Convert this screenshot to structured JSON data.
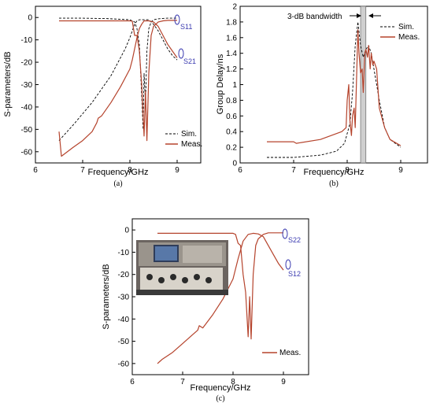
{
  "colors": {
    "meas": "#b5432c",
    "sim": "#000000",
    "marker": "#3b3bb0",
    "band": "#cfcfcf"
  },
  "chart_data": [
    {
      "id": "a",
      "type": "line",
      "caption": "(a)",
      "xlabel": "Frequency/GHz",
      "ylabel": "S-parameters/dB",
      "xlim": [
        6,
        9.5
      ],
      "ylim": [
        -65,
        5
      ],
      "xticks": [
        "6",
        "7",
        "8",
        "9"
      ],
      "yticks": [
        "0",
        "-10",
        "-20",
        "-30",
        "-40",
        "-50",
        "-60"
      ],
      "legend": [
        "Sim.",
        "Meas."
      ],
      "annotations": [
        "S11",
        "S21"
      ],
      "series": [
        {
          "name": "Sim.",
          "dash": true,
          "x": [
            6.5,
            6.8,
            7.0,
            7.2,
            7.4,
            7.6,
            7.8,
            7.9,
            8.0,
            8.05,
            8.1,
            8.15,
            8.2,
            8.25,
            8.3,
            8.35,
            8.4,
            8.5,
            8.6,
            8.7,
            8.8,
            8.9,
            9.0
          ],
          "y": [
            -55,
            -48,
            -43,
            -38,
            -32,
            -26,
            -18,
            -14,
            -9,
            -6,
            -3,
            -1.5,
            -1,
            -1,
            -1,
            -1,
            -1,
            -3,
            -6,
            -10,
            -14,
            -17,
            -19
          ]
        },
        {
          "name": "Sim.",
          "dash": true,
          "x": [
            6.5,
            7.0,
            7.5,
            8.0,
            8.1,
            8.15,
            8.2,
            8.25,
            8.28,
            8.3,
            8.33,
            8.36,
            8.4,
            8.45,
            8.5,
            8.6,
            8.7,
            8.8,
            9.0
          ],
          "y": [
            -0.3,
            -0.3,
            -0.5,
            -1,
            -2,
            -5,
            -12,
            -35,
            -50,
            -25,
            -38,
            -15,
            -5,
            -2,
            -1,
            -0.6,
            -0.4,
            -0.3,
            -0.3
          ]
        },
        {
          "name": "Meas.",
          "x": [
            6.5,
            6.55,
            6.8,
            7.0,
            7.2,
            7.3,
            7.33,
            7.4,
            7.6,
            7.8,
            8.0,
            8.05,
            8.1,
            8.15,
            8.2,
            8.25,
            8.3,
            8.35,
            8.4,
            8.5,
            8.6,
            8.7,
            8.8,
            8.9,
            9.0
          ],
          "y": [
            -51,
            -62,
            -58,
            -55,
            -51,
            -47,
            -45,
            -44,
            -38,
            -31,
            -23,
            -19,
            -14,
            -9,
            -5,
            -3,
            -1.5,
            -1.5,
            -1.5,
            -2,
            -4,
            -8,
            -12,
            -15,
            -18
          ]
        },
        {
          "name": "Meas.",
          "x": [
            6.5,
            7.0,
            7.5,
            8.0,
            8.05,
            8.1,
            8.15,
            8.2,
            8.25,
            8.3,
            8.33,
            8.36,
            8.4,
            8.45,
            8.5,
            8.6,
            8.7,
            8.8,
            9.0
          ],
          "y": [
            -1.5,
            -1.5,
            -1.5,
            -1.5,
            -1.6,
            -8,
            -8,
            -15,
            -30,
            -53,
            -33,
            -55,
            -25,
            -8,
            -4,
            -2,
            -1.5,
            -1.3,
            -1.3
          ]
        }
      ]
    },
    {
      "id": "b",
      "type": "line",
      "caption": "(b)",
      "xlabel": "Frequency/GHz",
      "ylabel": "Group Delay/ns",
      "xlim": [
        6,
        9.5
      ],
      "ylim": [
        0,
        2.0
      ],
      "xticks": [
        "6",
        "7",
        "8",
        "9"
      ],
      "yticks": [
        "0",
        "0.2",
        "0.4",
        "0.6",
        "0.8",
        "1",
        "1.2",
        "1.4",
        "1.6",
        "1.8",
        "2"
      ],
      "band": [
        8.25,
        8.35
      ],
      "band_label": "3-dB bandwidth",
      "legend": [
        "Sim.",
        "Meas."
      ],
      "series": [
        {
          "name": "Sim.",
          "dash": true,
          "x": [
            6.5,
            7.0,
            7.5,
            7.8,
            7.95,
            8.05,
            8.1,
            8.15,
            8.2,
            8.25,
            8.3,
            8.35,
            8.4,
            8.45,
            8.5,
            8.6,
            8.7,
            8.8,
            9.0
          ],
          "y": [
            0.07,
            0.07,
            0.1,
            0.15,
            0.25,
            0.5,
            0.9,
            1.5,
            1.8,
            1.5,
            1.35,
            1.45,
            1.5,
            1.4,
            1.2,
            0.8,
            0.45,
            0.3,
            0.2
          ]
        },
        {
          "name": "Meas.",
          "x": [
            6.5,
            7.0,
            7.05,
            7.5,
            7.9,
            7.98,
            8.0,
            8.03,
            8.05,
            8.08,
            8.1,
            8.13,
            8.15,
            8.2,
            8.22,
            8.25,
            8.28,
            8.3,
            8.33,
            8.35,
            8.38,
            8.4,
            8.43,
            8.45,
            8.48,
            8.5,
            8.55,
            8.6,
            8.7,
            8.8,
            9.0
          ],
          "y": [
            0.27,
            0.27,
            0.25,
            0.3,
            0.4,
            0.45,
            0.8,
            1.0,
            0.55,
            0.35,
            0.6,
            0.7,
            0.45,
            1.7,
            1.4,
            1.15,
            1.2,
            0.9,
            1.4,
            1.45,
            1.35,
            1.5,
            1.2,
            1.4,
            1.25,
            1.3,
            1.2,
            0.7,
            0.45,
            0.3,
            0.22
          ]
        }
      ]
    },
    {
      "id": "c",
      "type": "line",
      "caption": "(c)",
      "xlabel": "Frequency/GHz",
      "ylabel": "S-parameters/dB",
      "xlim": [
        6,
        9.5
      ],
      "ylim": [
        -65,
        5
      ],
      "xticks": [
        "6",
        "7",
        "8",
        "9"
      ],
      "yticks": [
        "0",
        "-10",
        "-20",
        "-30",
        "-40",
        "-50",
        "-60"
      ],
      "legend": [
        "Meas."
      ],
      "annotations": [
        "S22",
        "S12"
      ],
      "series": [
        {
          "name": "Meas.",
          "x": [
            6.5,
            6.55,
            6.6,
            6.8,
            7.0,
            7.2,
            7.3,
            7.33,
            7.4,
            7.6,
            7.8,
            8.0,
            8.1,
            8.2,
            8.3,
            8.4,
            8.5,
            8.6,
            8.7,
            8.8,
            8.9,
            9.0
          ],
          "y": [
            -60,
            -59,
            -58,
            -55,
            -51,
            -47,
            -45,
            -43,
            -44,
            -38,
            -31,
            -22,
            -13,
            -5,
            -2,
            -1.5,
            -1.8,
            -3,
            -7,
            -11,
            -15,
            -18
          ]
        },
        {
          "name": "Meas.",
          "x": [
            6.5,
            7.0,
            7.5,
            8.0,
            8.05,
            8.1,
            8.15,
            8.2,
            8.25,
            8.3,
            8.33,
            8.36,
            8.4,
            8.45,
            8.5,
            8.6,
            8.7,
            8.8,
            9.0
          ],
          "y": [
            -1.5,
            -1.5,
            -1.5,
            -1.5,
            -2,
            -6,
            -7,
            -20,
            -28,
            -48,
            -30,
            -49,
            -20,
            -7,
            -4,
            -2,
            -1.3,
            -1.3,
            -1.3
          ]
        }
      ]
    }
  ]
}
